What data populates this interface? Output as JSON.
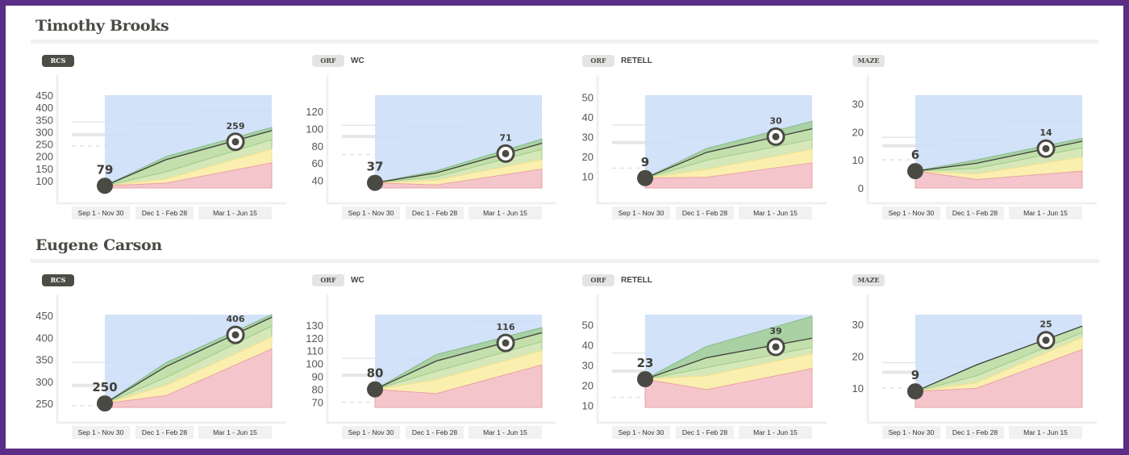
{
  "students": [
    {
      "name": "Timothy Brooks"
    },
    {
      "name": "Eugene Carson"
    }
  ],
  "periods": [
    "Sep 1 - Nov 30",
    "Dec 1 - Feb 28",
    "Mar 1 - Jun 15"
  ],
  "colors": {
    "frame": "#5b2d86",
    "above_goal_blue": "#cddff7",
    "dark_green": "#a9d1a3",
    "green": "#c3dfac",
    "light_green": "#d6e8b9",
    "yellow": "#fbefb0",
    "red": "#f4c6cc",
    "point": "#4a4a44"
  },
  "chart_data": [
    {
      "type": "area",
      "student": "Timothy Brooks",
      "badge": "RCS",
      "badge_style": "dark",
      "subtitle": "",
      "y_ticks": [
        100,
        150,
        200,
        250,
        300,
        350,
        400,
        450
      ],
      "ylim": [
        70,
        450
      ],
      "start": 79,
      "goal": 259,
      "bands": {
        "red": [
          79,
          90,
          173
        ],
        "yellow": [
          79,
          107,
          229
        ],
        "light_green": [
          79,
          136,
          268
        ],
        "trend": [
          79,
          186,
          305
        ],
        "dark_green": [
          79,
          199,
          318
        ]
      },
      "benchmarks": [
        [
          341,
          288,
          242
        ],
        [
          380,
          331,
          288
        ],
        [
          447,
          390,
          328
        ]
      ]
    },
    {
      "type": "area",
      "student": "Timothy Brooks",
      "badge": "ORF",
      "badge_style": "light",
      "subtitle": "WC",
      "y_ticks": [
        40,
        60,
        80,
        100,
        120
      ],
      "ylim": [
        31,
        139
      ],
      "start": 37,
      "goal": 71,
      "bands": {
        "red": [
          37,
          34.5,
          53
        ],
        "yellow": [
          37,
          40,
          64
        ],
        "light_green": [
          37,
          44,
          76
        ],
        "trend": [
          37,
          48.5,
          83
        ],
        "dark_green": [
          37,
          51,
          88
        ]
      },
      "benchmarks": [
        [
          104,
          91,
          70
        ],
        [
          121,
          103,
          80
        ],
        [
          133,
          116,
          96
        ]
      ]
    },
    {
      "type": "area",
      "student": "Timothy Brooks",
      "badge": "ORF",
      "badge_style": "light",
      "subtitle": "RETELL",
      "y_ticks": [
        10,
        20,
        30,
        40,
        50
      ],
      "ylim": [
        4,
        51
      ],
      "start": 9,
      "goal": 30,
      "bands": {
        "red": [
          9,
          9.4,
          16.7
        ],
        "yellow": [
          9,
          13.4,
          23.6
        ],
        "light_green": [
          9,
          18,
          28.6
        ],
        "trend": [
          9,
          22,
          34
        ],
        "dark_green": [
          9,
          24,
          37.8
        ]
      },
      "benchmarks": [
        [
          36,
          27,
          14
        ],
        [
          39,
          30,
          20
        ],
        [
          46,
          33,
          24
        ]
      ]
    },
    {
      "type": "area",
      "student": "Timothy Brooks",
      "badge": "MAZE",
      "badge_style": "light",
      "subtitle": "",
      "y_ticks": [
        0,
        10,
        20,
        30
      ],
      "ylim": [
        0,
        33
      ],
      "start": 6,
      "goal": 14,
      "bands": {
        "red": [
          6,
          3,
          6
        ],
        "yellow": [
          6,
          5,
          11
        ],
        "light_green": [
          6,
          7,
          14.3
        ],
        "trend": [
          6,
          8.8,
          16.6
        ],
        "dark_green": [
          6,
          10,
          17.7
        ]
      },
      "benchmarks": [
        [
          18,
          15,
          10
        ],
        [
          20,
          17,
          12
        ],
        [
          28,
          24,
          20
        ]
      ]
    },
    {
      "type": "area",
      "student": "Eugene Carson",
      "badge": "RCS",
      "badge_style": "dark",
      "subtitle": "",
      "y_ticks": [
        250,
        300,
        350,
        400,
        450
      ],
      "ylim": [
        241,
        452
      ],
      "start": 250,
      "goal": 406,
      "bands": {
        "red": [
          250,
          268,
          374
        ],
        "yellow": [
          250,
          291,
          401
        ],
        "light_green": [
          250,
          309,
          426
        ],
        "trend": [
          250,
          334,
          446
        ],
        "dark_green": [
          250,
          343,
          452
        ]
      },
      "benchmarks": [
        [
          343,
          291,
          245
        ],
        [
          383,
          330,
          289
        ],
        [
          446,
          391,
          330
        ]
      ]
    },
    {
      "type": "area",
      "student": "Eugene Carson",
      "badge": "ORF",
      "badge_style": "light",
      "subtitle": "WC",
      "y_ticks": [
        70,
        80,
        90,
        100,
        110,
        120,
        130
      ],
      "ylim": [
        66,
        138
      ],
      "start": 80,
      "goal": 116,
      "bands": {
        "red": [
          80,
          76.7,
          99
        ],
        "yellow": [
          80,
          87.5,
          110
        ],
        "light_green": [
          80,
          94,
          117
        ],
        "trend": [
          80,
          102,
          124
        ],
        "dark_green": [
          80,
          107,
          128
        ]
      },
      "benchmarks": [
        [
          104,
          91,
          70
        ],
        [
          121,
          103,
          79
        ],
        [
          133,
          115,
          96
        ]
      ]
    },
    {
      "type": "area",
      "student": "Eugene Carson",
      "badge": "ORF",
      "badge_style": "light",
      "subtitle": "RETELL",
      "y_ticks": [
        10,
        20,
        30,
        40,
        50
      ],
      "ylim": [
        9,
        55
      ],
      "start": 23,
      "goal": 39,
      "bands": {
        "red": [
          23,
          17.8,
          28.3
        ],
        "yellow": [
          23,
          24.7,
          35.6
        ],
        "light_green": [
          23,
          28.7,
          38.8
        ],
        "trend": [
          23,
          33.6,
          43.3
        ],
        "dark_green": [
          23,
          39.2,
          54.2
        ]
      },
      "benchmarks": [
        [
          36,
          27,
          14
        ],
        [
          39,
          30,
          20
        ],
        [
          46,
          33,
          24
        ]
      ]
    },
    {
      "type": "area",
      "student": "Eugene Carson",
      "badge": "MAZE",
      "badge_style": "light",
      "subtitle": "",
      "y_ticks": [
        10,
        20,
        30
      ],
      "ylim": [
        4,
        33
      ],
      "start": 9,
      "goal": 25,
      "bands": {
        "red": [
          9,
          10,
          22.1
        ],
        "yellow": [
          9,
          11.7,
          25.9
        ],
        "light_green": [
          9,
          13.9,
          27.4
        ],
        "trend": [
          9,
          17.3,
          29.4
        ],
        "dark_green": [
          9,
          17.3,
          29.4
        ]
      },
      "benchmarks": [
        [
          18,
          15,
          10
        ],
        [
          20,
          17,
          12
        ],
        [
          28,
          24,
          20
        ]
      ]
    }
  ]
}
